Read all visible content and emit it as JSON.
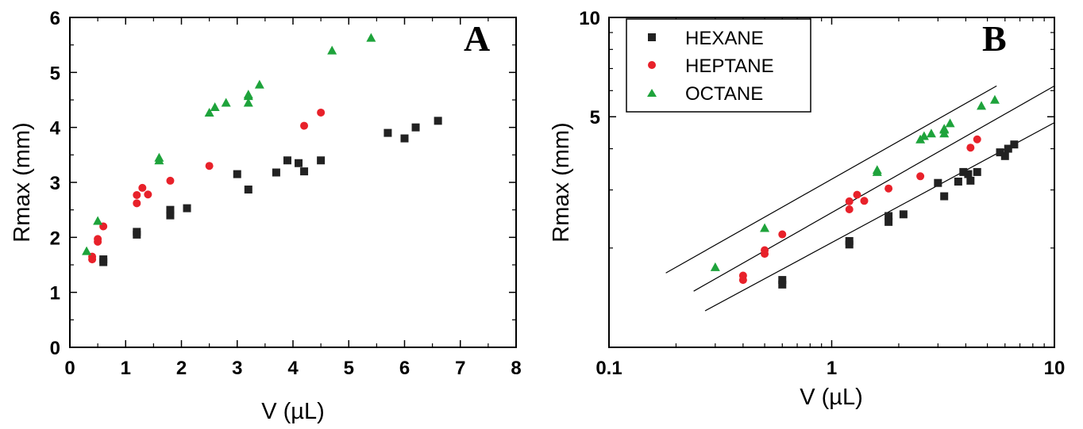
{
  "chart_data": [
    {
      "type": "scatter",
      "panel_label": "A",
      "xlabel": "V (µL)",
      "ylabel": "Rmax (mm)",
      "xlim": [
        0,
        8
      ],
      "ylim": [
        0,
        6
      ],
      "x_ticks": [
        0,
        1,
        2,
        3,
        4,
        5,
        6,
        7,
        8
      ],
      "y_ticks": [
        0,
        1,
        2,
        3,
        4,
        5,
        6
      ],
      "x_tick_labels": [
        "0",
        "1",
        "2",
        "3",
        "4",
        "5",
        "6",
        "7",
        "8"
      ],
      "y_tick_labels": [
        "0",
        "1",
        "2",
        "3",
        "4",
        "5",
        "6"
      ],
      "grid": false,
      "series": [
        {
          "marker": "square",
          "color": "#222222",
          "points": [
            [
              0.6,
              1.55
            ],
            [
              0.6,
              1.6
            ],
            [
              1.2,
              2.05
            ],
            [
              1.2,
              2.1
            ],
            [
              1.8,
              2.4
            ],
            [
              1.8,
              2.5
            ],
            [
              2.1,
              2.53
            ],
            [
              3.0,
              3.15
            ],
            [
              3.2,
              2.87
            ],
            [
              3.7,
              3.18
            ],
            [
              3.9,
              3.4
            ],
            [
              4.1,
              3.35
            ],
            [
              4.2,
              3.2
            ],
            [
              4.5,
              3.4
            ],
            [
              5.7,
              3.9
            ],
            [
              6.0,
              3.8
            ],
            [
              6.2,
              4.0
            ],
            [
              6.6,
              4.12
            ]
          ]
        },
        {
          "marker": "circle",
          "color": "#e8212a",
          "points": [
            [
              0.4,
              1.6
            ],
            [
              0.4,
              1.65
            ],
            [
              0.5,
              1.92
            ],
            [
              0.5,
              1.97
            ],
            [
              0.6,
              2.2
            ],
            [
              1.2,
              2.62
            ],
            [
              1.2,
              2.77
            ],
            [
              1.3,
              2.9
            ],
            [
              1.4,
              2.78
            ],
            [
              1.8,
              3.03
            ],
            [
              2.5,
              3.3
            ],
            [
              4.2,
              4.03
            ],
            [
              4.5,
              4.27
            ]
          ]
        },
        {
          "marker": "triangle",
          "color": "#1ea33b",
          "points": [
            [
              0.3,
              1.75
            ],
            [
              0.5,
              2.3
            ],
            [
              1.6,
              3.4
            ],
            [
              1.6,
              3.45
            ],
            [
              2.5,
              4.27
            ],
            [
              2.6,
              4.37
            ],
            [
              2.8,
              4.45
            ],
            [
              3.2,
              4.45
            ],
            [
              3.2,
              4.57
            ],
            [
              3.2,
              4.6
            ],
            [
              3.4,
              4.78
            ],
            [
              4.7,
              5.4
            ],
            [
              5.4,
              5.63
            ]
          ]
        }
      ]
    },
    {
      "type": "scatter",
      "panel_label": "B",
      "xlabel": "V (µL)",
      "ylabel": "Rmax (mm)",
      "xscale": "log",
      "yscale": "log",
      "xlim": [
        0.1,
        10
      ],
      "ylim": [
        1,
        10
      ],
      "x_ticks": [
        0.1,
        1,
        10
      ],
      "y_ticks": [
        5,
        10
      ],
      "x_tick_labels": [
        "0.1",
        "1",
        "10"
      ],
      "y_tick_labels": [
        "5",
        "10"
      ],
      "grid": false,
      "legend_position": "top-left",
      "series": [
        {
          "name": "HEXANE",
          "marker": "square",
          "color": "#222222",
          "points": [
            [
              0.6,
              1.55
            ],
            [
              0.6,
              1.6
            ],
            [
              1.2,
              2.05
            ],
            [
              1.2,
              2.1
            ],
            [
              1.8,
              2.4
            ],
            [
              1.8,
              2.5
            ],
            [
              2.1,
              2.53
            ],
            [
              3.0,
              3.15
            ],
            [
              3.2,
              2.87
            ],
            [
              3.7,
              3.18
            ],
            [
              3.9,
              3.4
            ],
            [
              4.1,
              3.35
            ],
            [
              4.2,
              3.2
            ],
            [
              4.5,
              3.4
            ],
            [
              5.7,
              3.9
            ],
            [
              6.0,
              3.8
            ],
            [
              6.2,
              4.0
            ],
            [
              6.6,
              4.12
            ]
          ],
          "fit_line": {
            "x": [
              0.27,
              10
            ],
            "y": [
              1.29,
              4.8
            ]
          }
        },
        {
          "name": "HEPTANE",
          "marker": "circle",
          "color": "#e8212a",
          "points": [
            [
              0.4,
              1.6
            ],
            [
              0.4,
              1.65
            ],
            [
              0.5,
              1.92
            ],
            [
              0.5,
              1.97
            ],
            [
              0.6,
              2.2
            ],
            [
              1.2,
              2.62
            ],
            [
              1.2,
              2.77
            ],
            [
              1.3,
              2.9
            ],
            [
              1.4,
              2.78
            ],
            [
              1.8,
              3.03
            ],
            [
              2.5,
              3.3
            ],
            [
              4.2,
              4.03
            ],
            [
              4.5,
              4.27
            ]
          ],
          "fit_line": {
            "x": [
              0.24,
              10
            ],
            "y": [
              1.48,
              6.2
            ]
          }
        },
        {
          "name": "OCTANE",
          "marker": "triangle",
          "color": "#1ea33b",
          "points": [
            [
              0.3,
              1.75
            ],
            [
              0.5,
              2.3
            ],
            [
              1.6,
              3.4
            ],
            [
              1.6,
              3.45
            ],
            [
              2.5,
              4.27
            ],
            [
              2.6,
              4.37
            ],
            [
              2.8,
              4.45
            ],
            [
              3.2,
              4.45
            ],
            [
              3.2,
              4.57
            ],
            [
              3.2,
              4.6
            ],
            [
              3.4,
              4.78
            ],
            [
              4.7,
              5.4
            ],
            [
              5.4,
              5.63
            ]
          ],
          "fit_line": {
            "x": [
              0.18,
              5.5
            ],
            "y": [
              1.68,
              6.2
            ]
          }
        }
      ]
    }
  ]
}
